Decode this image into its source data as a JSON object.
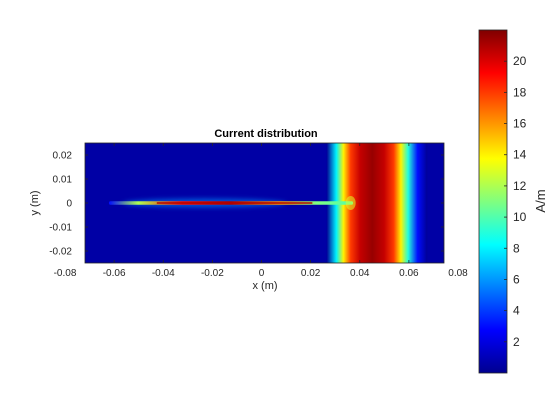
{
  "chart_data": {
    "type": "heatmap",
    "title": "Current distribution",
    "xlabel": "x (m)",
    "ylabel": "y (m)",
    "xlim": [
      -0.08,
      0.08
    ],
    "ylim": [
      -0.025,
      0.025
    ],
    "x_ticks": [
      -0.08,
      -0.06,
      -0.04,
      -0.02,
      0,
      0.02,
      0.04,
      0.06,
      0.08
    ],
    "x_tick_labels": [
      "-0.08",
      "-0.06",
      "-0.04",
      "-0.02",
      "0",
      "0.02",
      "0.04",
      "0.06",
      "0.08"
    ],
    "y_ticks": [
      0.02,
      0.01,
      0,
      -0.01,
      -0.02
    ],
    "y_tick_labels": [
      "0.02",
      "0.01",
      "0",
      "-0.01",
      "-0.02"
    ],
    "data_extent": {
      "x": [
        -0.075,
        0.075
      ],
      "y": [
        -0.025,
        0.025
      ]
    },
    "colormap": "jet",
    "colorbar": {
      "label": "A/m",
      "range": [
        0,
        22
      ],
      "ticks": [
        2,
        4,
        6,
        8,
        10,
        12,
        14,
        16,
        18,
        20
      ],
      "tick_labels": [
        "2",
        "4",
        "6",
        "8",
        "10",
        "12",
        "14",
        "16",
        "18",
        "20"
      ]
    },
    "features": {
      "wide_strip": {
        "description_values_by_x": [
          {
            "x": 0.026,
            "value": 0.5
          },
          {
            "x": 0.03,
            "value": 8
          },
          {
            "x": 0.033,
            "value": 14
          },
          {
            "x": 0.036,
            "value": 18
          },
          {
            "x": 0.04,
            "value": 20.5
          },
          {
            "x": 0.045,
            "value": 21.5
          },
          {
            "x": 0.05,
            "value": 20.5
          },
          {
            "x": 0.054,
            "value": 18
          },
          {
            "x": 0.057,
            "value": 14
          },
          {
            "x": 0.06,
            "value": 9
          },
          {
            "x": 0.064,
            "value": 3
          },
          {
            "x": 0.068,
            "value": 0.5
          }
        ]
      },
      "feed_line": {
        "x_range": [
          -0.065,
          0.037
        ],
        "y": 0,
        "peak_value": 21
      }
    }
  }
}
